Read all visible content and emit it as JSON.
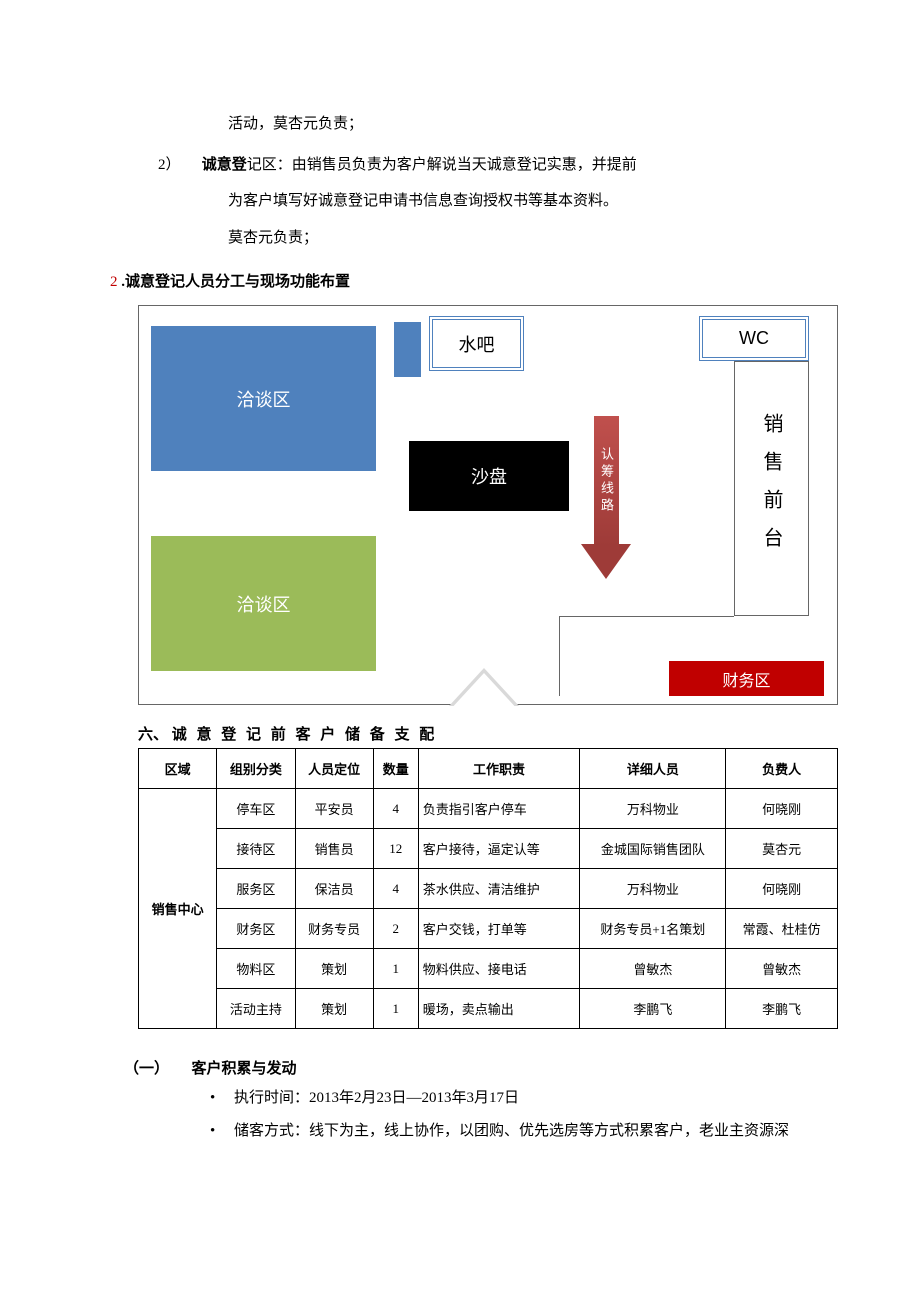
{
  "text": {
    "line1": "活动，莫杏元负责；",
    "item2_lead": "2）",
    "item2_label": "诚意登",
    "item2_rest": "记区：由销售员负责为客户解说当天诚意登记实惠，并提前",
    "item2_sub1": "为客户填写好诚意登记申请书信息查询授权书等基本资料。",
    "item2_sub2": "莫杏元负责；",
    "sec2_num": "2",
    "sec2_title": " .诚意登记人员分工与现场功能布置",
    "h6_num": "六、",
    "h6_title": "诚 意 登 记 前 客 户 储 备 支 配",
    "sub_sec": "（一）　　客户积累与发动",
    "b1": "执行时间：2013年2月23日—2013年3月17日",
    "b2": "储客方式：线下为主，线上协作，以团购、优先选房等方式积累客户，老业主资源深"
  },
  "diagram": {
    "negot1": "洽谈区",
    "negot2": "洽谈区",
    "waterbar": "水吧",
    "shapan": "沙盘",
    "wc": "WC",
    "frontdesk": "销售前台",
    "finance": "财务区",
    "arrow": "认筹线路",
    "colors": {
      "blue": "#4f81bd",
      "green": "#9bbb59",
      "black": "#000000",
      "red": "#c00000",
      "arrow": "#c0504d"
    }
  },
  "table": {
    "headers": [
      "区域",
      "组别分类",
      "人员定位",
      "数量",
      "工作职责",
      "详细人员",
      "负费人"
    ],
    "area": "销售中心",
    "rows": [
      [
        "停车区",
        "平安员",
        "4",
        "负责指引客户停车",
        "万科物业",
        "何晓刚"
      ],
      [
        "接待区",
        "销售员",
        "12",
        "客户接待，逼定认等",
        "金城国际销售团队",
        "莫杏元"
      ],
      [
        "服务区",
        "保洁员",
        "4",
        "茶水供应、清洁维护",
        "万科物业",
        "何晓刚"
      ],
      [
        "财务区",
        "财务专员",
        "2",
        "客户交钱，打单等",
        "财务专员+1名策划",
        "常霞、杜桂仿"
      ],
      [
        "物料区",
        "策划",
        "1",
        "物料供应、接电话",
        "曾敏杰",
        "曾敏杰"
      ],
      [
        "活动主持",
        "策划",
        "1",
        "暖场，卖点输出",
        "李鹏飞",
        "李鹏飞"
      ]
    ]
  }
}
